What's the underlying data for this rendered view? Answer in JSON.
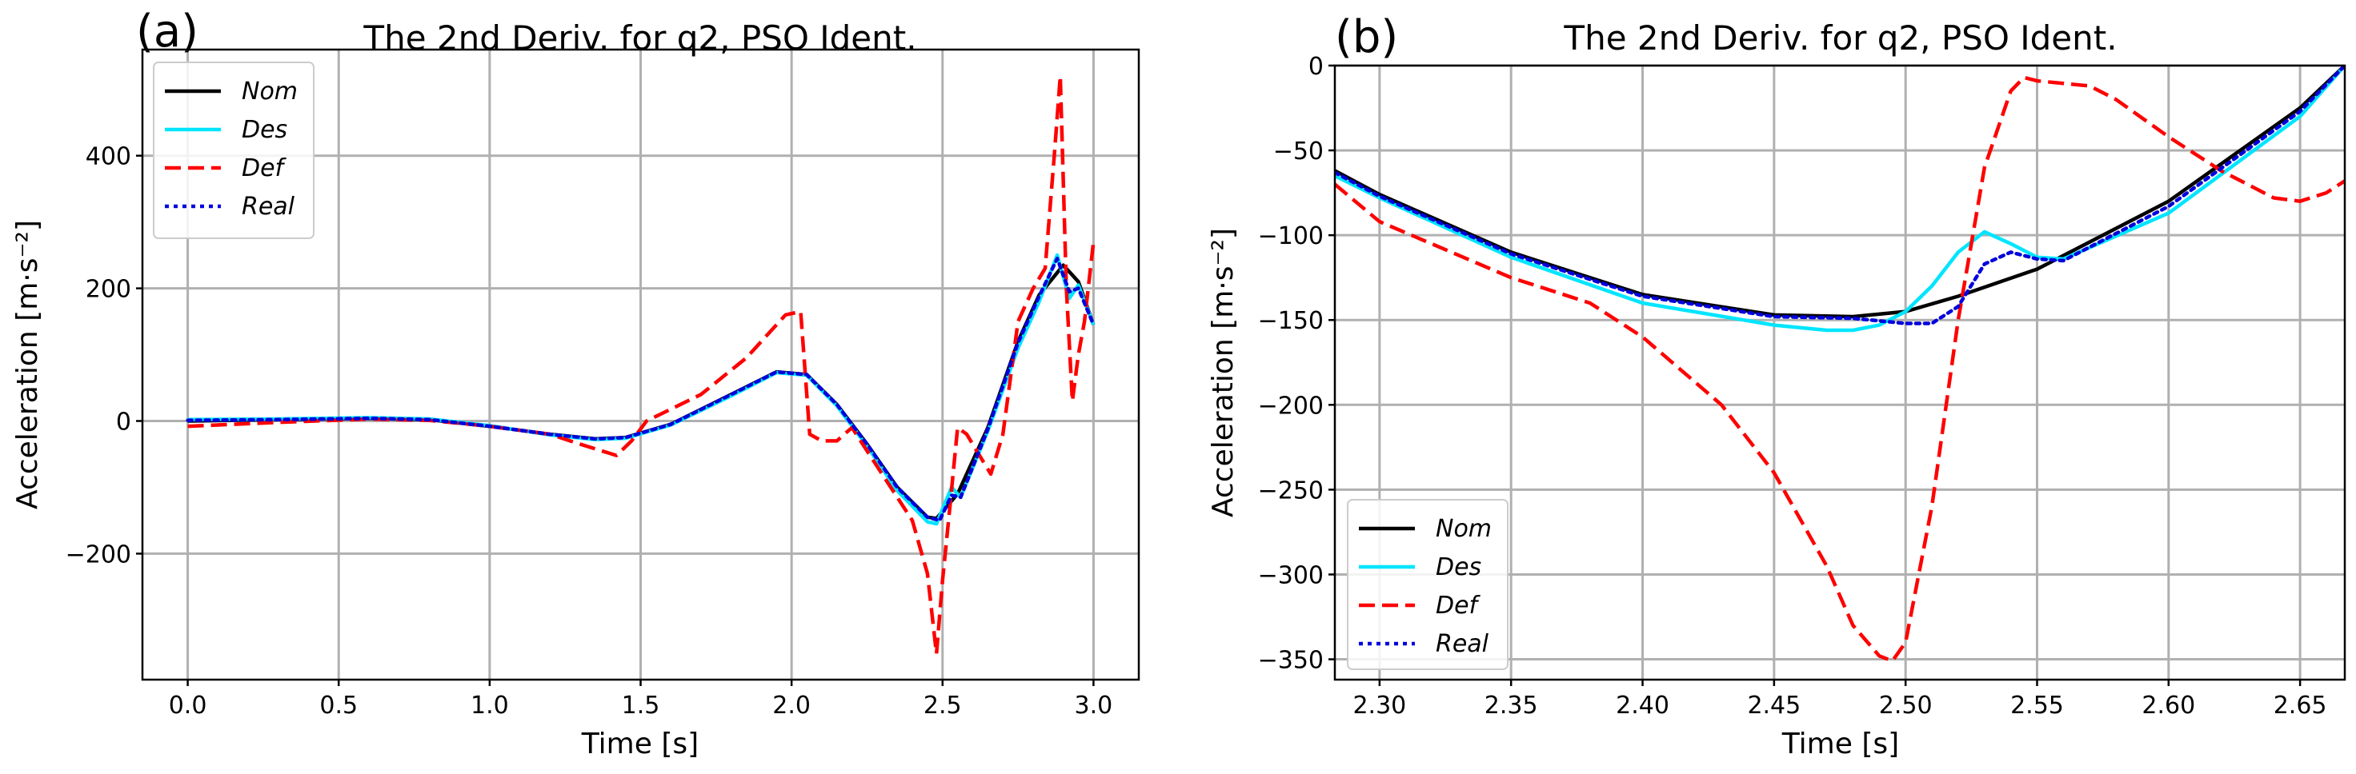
{
  "chart_data": [
    {
      "panel": "(a)",
      "type": "line",
      "title": "The 2nd Deriv. for q2, PSO Ident.",
      "xlabel": "Time [s]",
      "ylabel": "Acceleration [m·s⁻²]",
      "xlim": [
        -0.15,
        3.15
      ],
      "ylim": [
        -390,
        560
      ],
      "xticks": [
        0.0,
        0.5,
        1.0,
        1.5,
        2.0,
        2.5,
        3.0
      ],
      "xtick_labels": [
        "0.0",
        "0.5",
        "1.0",
        "1.5",
        "2.0",
        "2.5",
        "3.0"
      ],
      "yticks": [
        -200,
        0,
        200,
        400
      ],
      "ytick_labels": [
        "−200",
        "0",
        "200",
        "400"
      ],
      "grid": true,
      "legend": "top-left",
      "series": [
        {
          "name": "Nom",
          "color": "#000000",
          "dash": "solid",
          "x": [
            0,
            0.3,
            0.6,
            0.8,
            1.0,
            1.2,
            1.35,
            1.45,
            1.6,
            1.8,
            1.95,
            2.05,
            2.15,
            2.25,
            2.35,
            2.45,
            2.48,
            2.55,
            2.65,
            2.75,
            2.82,
            2.9,
            2.95,
            3.0
          ],
          "y": [
            0,
            2,
            4,
            2,
            -8,
            -20,
            -27,
            -25,
            -5,
            40,
            74,
            70,
            25,
            -35,
            -100,
            -145,
            -147,
            -110,
            -10,
            120,
            190,
            235,
            210,
            145
          ]
        },
        {
          "name": "Des",
          "color": "#00e5ff",
          "dash": "solid",
          "x": [
            0,
            0.3,
            0.6,
            0.8,
            1.0,
            1.2,
            1.35,
            1.45,
            1.6,
            1.8,
            1.95,
            2.05,
            2.15,
            2.25,
            2.35,
            2.45,
            2.48,
            2.53,
            2.56,
            2.65,
            2.75,
            2.82,
            2.88,
            2.92,
            2.95,
            3.0
          ],
          "y": [
            2,
            3,
            5,
            3,
            -7,
            -21,
            -28,
            -26,
            -6,
            38,
            73,
            69,
            23,
            -38,
            -105,
            -152,
            -155,
            -100,
            -115,
            -15,
            110,
            180,
            250,
            185,
            205,
            145
          ]
        },
        {
          "name": "Def",
          "color": "#ff0000",
          "dash": "dashed",
          "x": [
            0,
            0.3,
            0.6,
            0.8,
            1.0,
            1.2,
            1.3,
            1.42,
            1.47,
            1.52,
            1.7,
            1.85,
            1.98,
            2.03,
            2.06,
            2.1,
            2.15,
            2.2,
            2.3,
            2.4,
            2.45,
            2.48,
            2.5,
            2.52,
            2.55,
            2.58,
            2.62,
            2.66,
            2.7,
            2.75,
            2.8,
            2.84,
            2.87,
            2.89,
            2.91,
            2.93,
            2.95,
            2.97,
            3.0
          ],
          "y": [
            -8,
            -2,
            3,
            1,
            -8,
            -20,
            -35,
            -52,
            -30,
            0,
            40,
            95,
            160,
            165,
            -20,
            -30,
            -30,
            -10,
            -80,
            -150,
            -230,
            -351,
            -240,
            -150,
            -10,
            -20,
            -50,
            -80,
            -20,
            150,
            200,
            230,
            400,
            520,
            200,
            30,
            100,
            150,
            270
          ]
        },
        {
          "name": "Real",
          "color": "#0000dd",
          "dash": "dotted",
          "x": [
            0,
            0.3,
            0.6,
            0.8,
            1.0,
            1.2,
            1.35,
            1.45,
            1.6,
            1.8,
            1.95,
            2.05,
            2.15,
            2.25,
            2.35,
            2.45,
            2.49,
            2.53,
            2.56,
            2.65,
            2.75,
            2.82,
            2.88,
            2.92,
            2.95,
            3.0
          ],
          "y": [
            1,
            2,
            4,
            2,
            -8,
            -20,
            -27,
            -25,
            -5,
            40,
            74,
            70,
            25,
            -35,
            -100,
            -145,
            -150,
            -112,
            -115,
            -12,
            118,
            188,
            245,
            195,
            200,
            145
          ]
        }
      ]
    },
    {
      "panel": "(b)",
      "type": "line",
      "title": "The 2nd Deriv. for q2, PSO Ident.",
      "xlabel": "Time [s]",
      "ylabel": "Acceleration [m·s⁻²]",
      "xlim": [
        2.283,
        2.667
      ],
      "ylim": [
        -362,
        0
      ],
      "xticks": [
        2.3,
        2.35,
        2.4,
        2.45,
        2.5,
        2.55,
        2.6,
        2.65
      ],
      "xtick_labels": [
        "2.30",
        "2.35",
        "2.40",
        "2.45",
        "2.50",
        "2.55",
        "2.60",
        "2.65"
      ],
      "yticks": [
        -350,
        -300,
        -250,
        -200,
        -150,
        -100,
        -50,
        0
      ],
      "ytick_labels": [
        "−350",
        "−300",
        "−250",
        "−200",
        "−150",
        "−100",
        "−50",
        "0"
      ],
      "grid": true,
      "legend": "bottom-left",
      "series": [
        {
          "name": "Nom",
          "color": "#000000",
          "dash": "solid",
          "x": [
            2.283,
            2.3,
            2.35,
            2.4,
            2.45,
            2.48,
            2.5,
            2.52,
            2.55,
            2.6,
            2.65,
            2.667
          ],
          "y": [
            -62,
            -76,
            -110,
            -135,
            -147,
            -148,
            -145,
            -136,
            -120,
            -80,
            -25,
            0
          ]
        },
        {
          "name": "Des",
          "color": "#00e5ff",
          "dash": "solid",
          "x": [
            2.283,
            2.3,
            2.35,
            2.4,
            2.45,
            2.47,
            2.48,
            2.49,
            2.5,
            2.51,
            2.52,
            2.53,
            2.54,
            2.55,
            2.56,
            2.6,
            2.65,
            2.667
          ],
          "y": [
            -65,
            -78,
            -113,
            -140,
            -153,
            -156,
            -156,
            -153,
            -145,
            -130,
            -110,
            -98,
            -105,
            -113,
            -114,
            -87,
            -30,
            0
          ]
        },
        {
          "name": "Def",
          "color": "#ff0000",
          "dash": "dashed",
          "x": [
            2.283,
            2.3,
            2.35,
            2.38,
            2.4,
            2.43,
            2.45,
            2.47,
            2.48,
            2.49,
            2.495,
            2.5,
            2.51,
            2.52,
            2.53,
            2.54,
            2.545,
            2.55,
            2.57,
            2.58,
            2.6,
            2.62,
            2.64,
            2.65,
            2.66,
            2.667
          ],
          "y": [
            -70,
            -92,
            -125,
            -140,
            -160,
            -200,
            -240,
            -295,
            -330,
            -348,
            -351,
            -340,
            -260,
            -150,
            -60,
            -15,
            -7,
            -9,
            -12,
            -20,
            -42,
            -62,
            -78,
            -80,
            -75,
            -68
          ]
        },
        {
          "name": "Real",
          "color": "#0000dd",
          "dash": "dotted",
          "x": [
            2.283,
            2.3,
            2.35,
            2.4,
            2.45,
            2.48,
            2.5,
            2.51,
            2.52,
            2.53,
            2.54,
            2.55,
            2.56,
            2.6,
            2.65,
            2.667
          ],
          "y": [
            -63,
            -77,
            -111,
            -136,
            -148,
            -149,
            -152,
            -152,
            -142,
            -117,
            -110,
            -114,
            -115,
            -83,
            -27,
            0
          ]
        }
      ]
    }
  ]
}
